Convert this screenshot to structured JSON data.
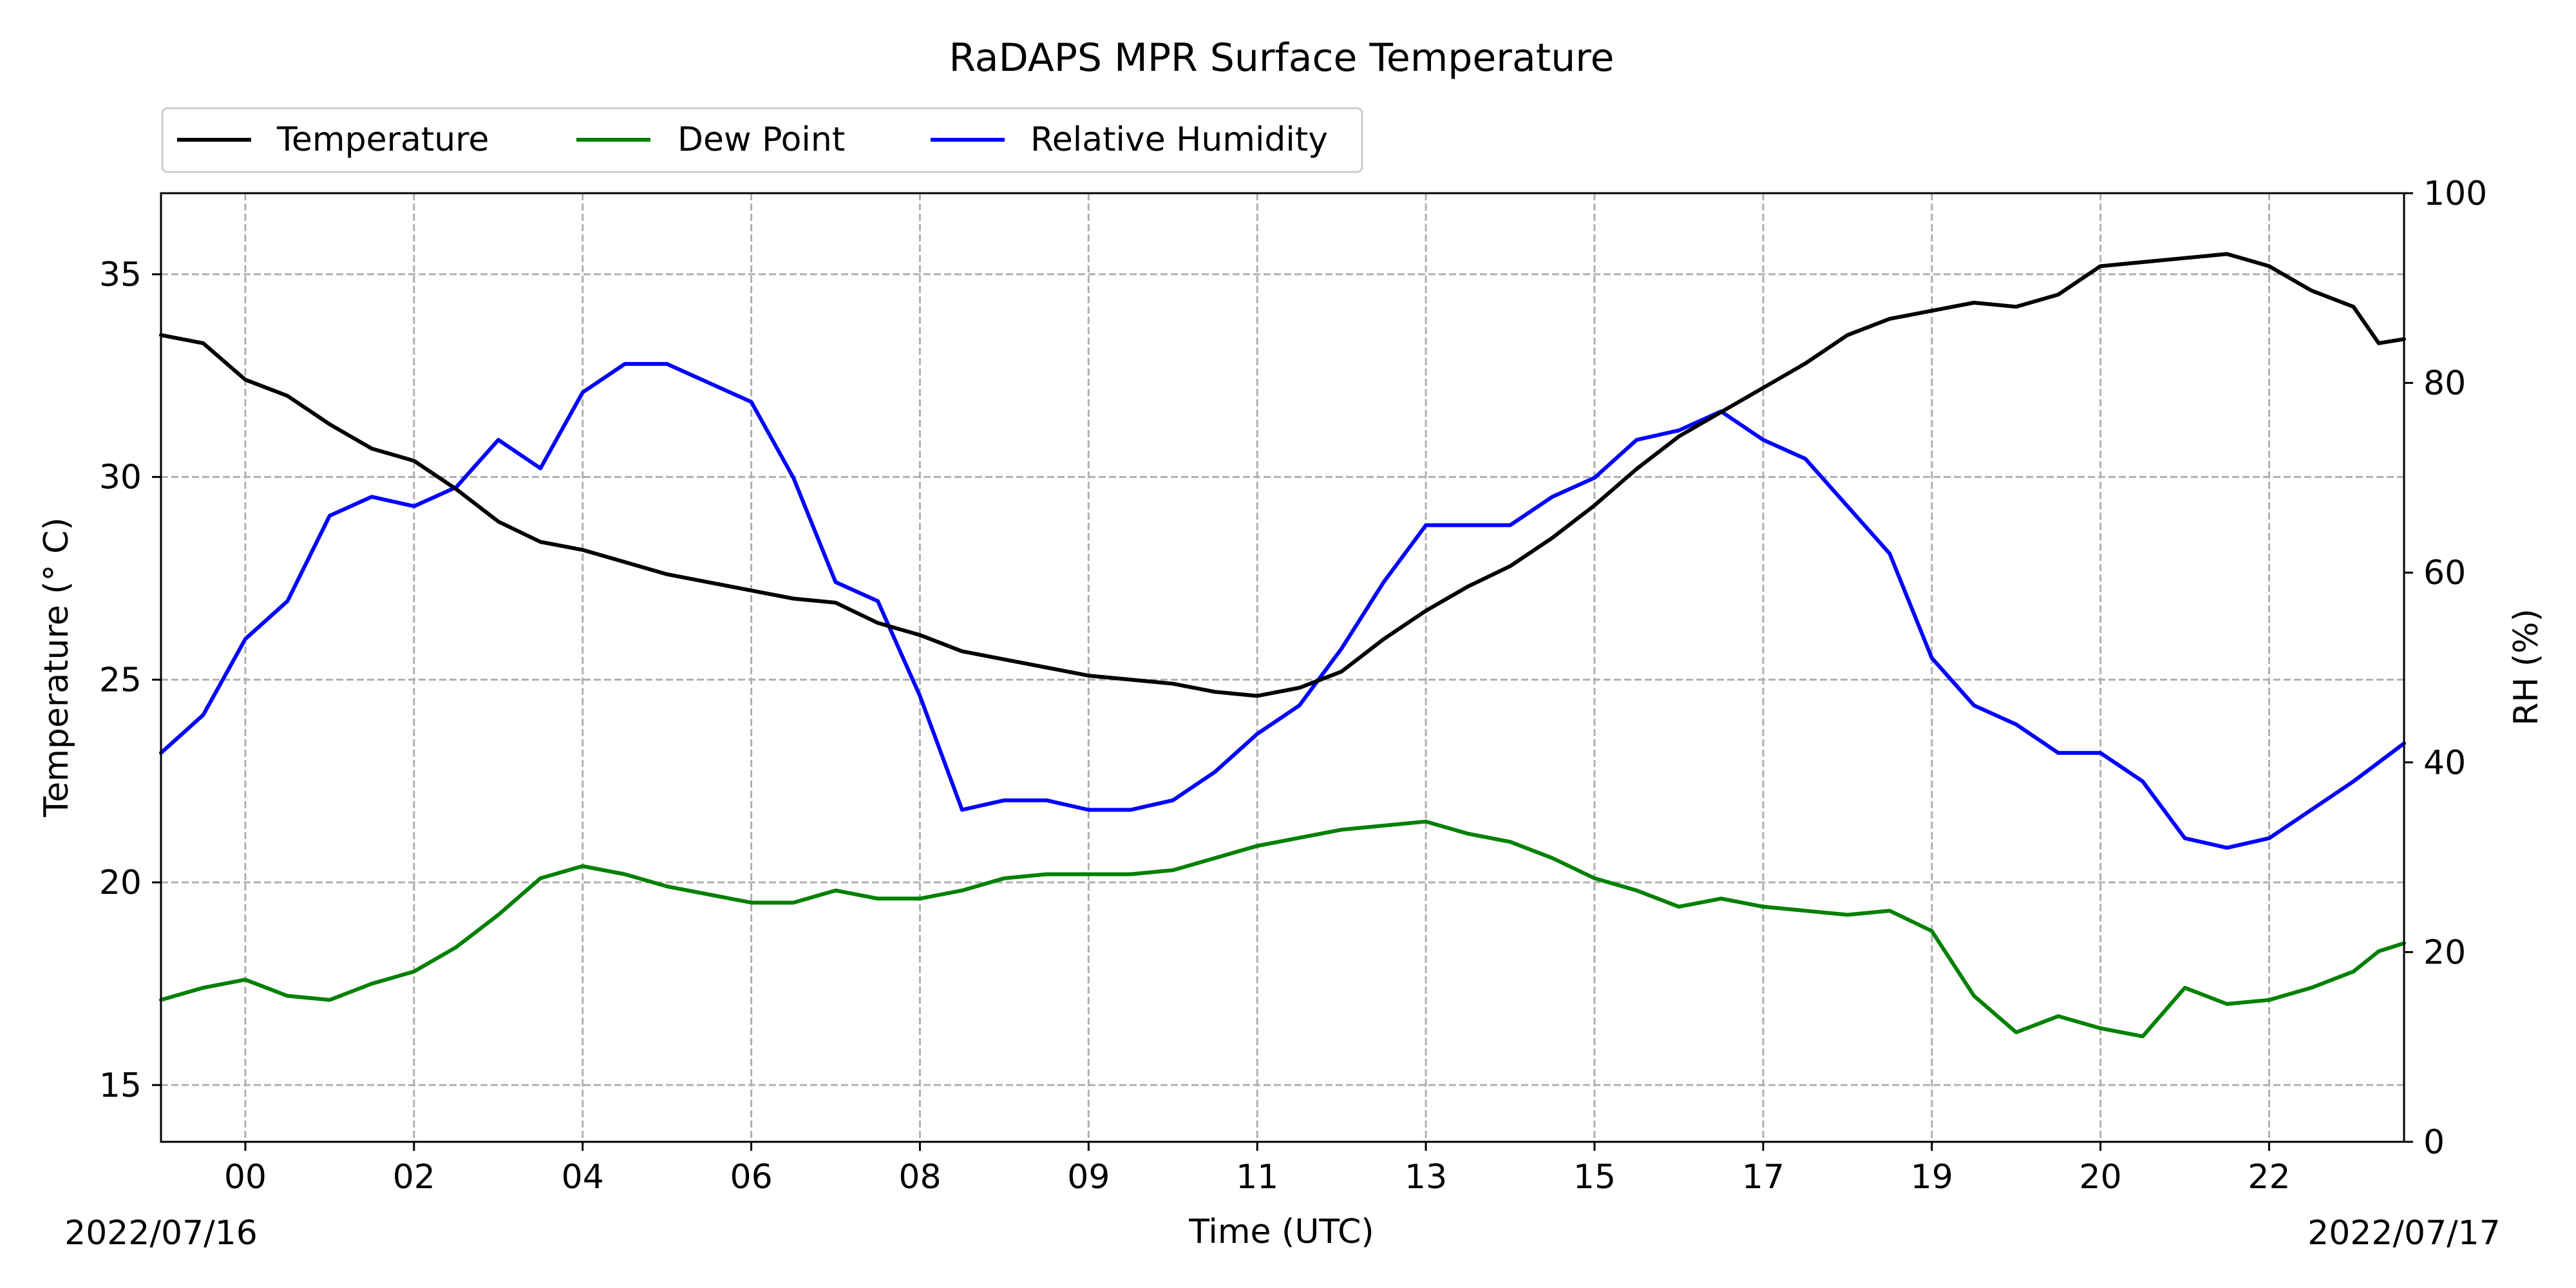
{
  "chart_data": {
    "type": "line",
    "title": "RaDAPS MPR Surface Temperature",
    "xlabel": "Time (UTC)",
    "ylabel_left": "Temperature ($^\\circ$C)",
    "ylabel_left_display": "Temperature (° C)",
    "ylabel_right": "RH (%)",
    "start_date_label": "2022/07/16",
    "end_date_label": "2022/07/17",
    "x_range_hours": [
      -1.0,
      25.6
    ],
    "ylim_left": [
      13.6,
      37.0
    ],
    "ylim_right": [
      0,
      100
    ],
    "grid": true,
    "legend_placement": "above-left",
    "x_ticks": [
      {
        "hour": 0,
        "label": "00"
      },
      {
        "hour": 2,
        "label": "02"
      },
      {
        "hour": 4,
        "label": "04"
      },
      {
        "hour": 6,
        "label": "06"
      },
      {
        "hour": 8,
        "label": "08"
      },
      {
        "hour": 10,
        "label": "09"
      },
      {
        "hour": 12,
        "label": "11"
      },
      {
        "hour": 14,
        "label": "13"
      },
      {
        "hour": 16,
        "label": "15"
      },
      {
        "hour": 18,
        "label": "17"
      },
      {
        "hour": 20,
        "label": "19"
      },
      {
        "hour": 22,
        "label": "20"
      },
      {
        "hour": 24,
        "label": "22"
      }
    ],
    "y_ticks_left": [
      15,
      20,
      25,
      30,
      35
    ],
    "y_ticks_right": [
      0,
      20,
      40,
      60,
      80,
      100
    ],
    "series": [
      {
        "name": "Temperature",
        "color": "#000000",
        "axis": "left",
        "x": [
          -1.0,
          -0.5,
          0.0,
          0.5,
          1.0,
          1.5,
          2.0,
          2.5,
          3.0,
          3.5,
          4.0,
          4.5,
          5.0,
          5.5,
          6.0,
          6.5,
          7.0,
          7.5,
          8.0,
          8.5,
          9.0,
          9.5,
          10.0,
          10.5,
          11.0,
          11.5,
          12.0,
          12.5,
          13.0,
          13.5,
          14.0,
          14.5,
          15.0,
          15.5,
          16.0,
          16.5,
          17.0,
          17.5,
          18.0,
          18.5,
          19.0,
          19.5,
          20.0,
          20.5,
          21.0,
          21.5,
          22.0,
          22.5,
          23.0,
          23.5,
          24.0,
          24.5,
          25.0,
          25.3,
          25.6
        ],
        "y": [
          33.5,
          33.3,
          32.4,
          32.0,
          31.3,
          30.7,
          30.4,
          29.7,
          28.9,
          28.4,
          28.2,
          27.9,
          27.6,
          27.4,
          27.2,
          27.0,
          26.9,
          26.4,
          26.1,
          25.7,
          25.5,
          25.3,
          25.1,
          25.0,
          24.9,
          24.7,
          24.6,
          24.8,
          25.2,
          26.0,
          26.7,
          27.3,
          27.8,
          28.5,
          29.3,
          30.2,
          31.0,
          31.6,
          32.2,
          32.8,
          33.5,
          33.9,
          34.1,
          34.3,
          34.2,
          34.5,
          35.2,
          35.3,
          35.4,
          35.5,
          35.2,
          34.6,
          34.2,
          33.3,
          33.4
        ]
      },
      {
        "name": "Dew Point",
        "color": "#008000",
        "axis": "left",
        "x": [
          -1.0,
          -0.5,
          0.0,
          0.5,
          1.0,
          1.5,
          2.0,
          2.5,
          3.0,
          3.5,
          4.0,
          4.5,
          5.0,
          5.5,
          6.0,
          6.5,
          7.0,
          7.5,
          8.0,
          8.5,
          9.0,
          9.5,
          10.0,
          10.5,
          11.0,
          11.5,
          12.0,
          12.5,
          13.0,
          13.5,
          14.0,
          14.5,
          15.0,
          15.5,
          16.0,
          16.5,
          17.0,
          17.5,
          18.0,
          18.5,
          19.0,
          19.5,
          20.0,
          20.5,
          21.0,
          21.5,
          22.0,
          22.5,
          23.0,
          23.5,
          24.0,
          24.5,
          25.0,
          25.3,
          25.6
        ],
        "y": [
          17.1,
          17.4,
          17.6,
          17.2,
          17.1,
          17.5,
          17.8,
          18.4,
          19.2,
          20.1,
          20.4,
          20.2,
          19.9,
          19.7,
          19.5,
          19.5,
          19.8,
          19.6,
          19.6,
          19.8,
          20.1,
          20.2,
          20.2,
          20.2,
          20.3,
          20.6,
          20.9,
          21.1,
          21.3,
          21.4,
          21.5,
          21.2,
          21.0,
          20.6,
          20.1,
          19.8,
          19.4,
          19.6,
          19.4,
          19.3,
          19.2,
          19.3,
          18.8,
          17.2,
          16.3,
          16.7,
          16.4,
          16.2,
          17.4,
          17.0,
          17.1,
          17.4,
          17.8,
          18.3,
          18.5
        ]
      },
      {
        "name": "Relative Humidity",
        "color": "#0000ff",
        "axis": "right",
        "x": [
          -1.0,
          -0.5,
          0.0,
          0.5,
          1.0,
          1.5,
          2.0,
          2.5,
          3.0,
          3.5,
          4.0,
          4.5,
          5.0,
          5.5,
          6.0,
          6.5,
          7.0,
          7.5,
          8.0,
          8.5,
          9.0,
          9.5,
          10.0,
          10.5,
          11.0,
          11.5,
          12.0,
          12.5,
          13.0,
          13.5,
          14.0,
          14.5,
          15.0,
          15.5,
          16.0,
          16.5,
          17.0,
          17.5,
          18.0,
          18.5,
          19.0,
          19.5,
          20.0,
          20.5,
          21.0,
          21.5,
          22.0,
          22.5,
          23.0,
          23.5,
          24.0,
          24.5,
          25.0,
          25.3,
          25.6
        ],
        "y": [
          41,
          45,
          53,
          57,
          66,
          68,
          67,
          69,
          74,
          71,
          79,
          82,
          82,
          80,
          78,
          70,
          59,
          57,
          47,
          35,
          36,
          36,
          35,
          35,
          36,
          39,
          43,
          46,
          52,
          59,
          65,
          65,
          65,
          68,
          70,
          74,
          75,
          77,
          74,
          72,
          67,
          62,
          51,
          46,
          44,
          41,
          41,
          38,
          32,
          31,
          32,
          35,
          38,
          40,
          42
        ]
      }
    ]
  }
}
